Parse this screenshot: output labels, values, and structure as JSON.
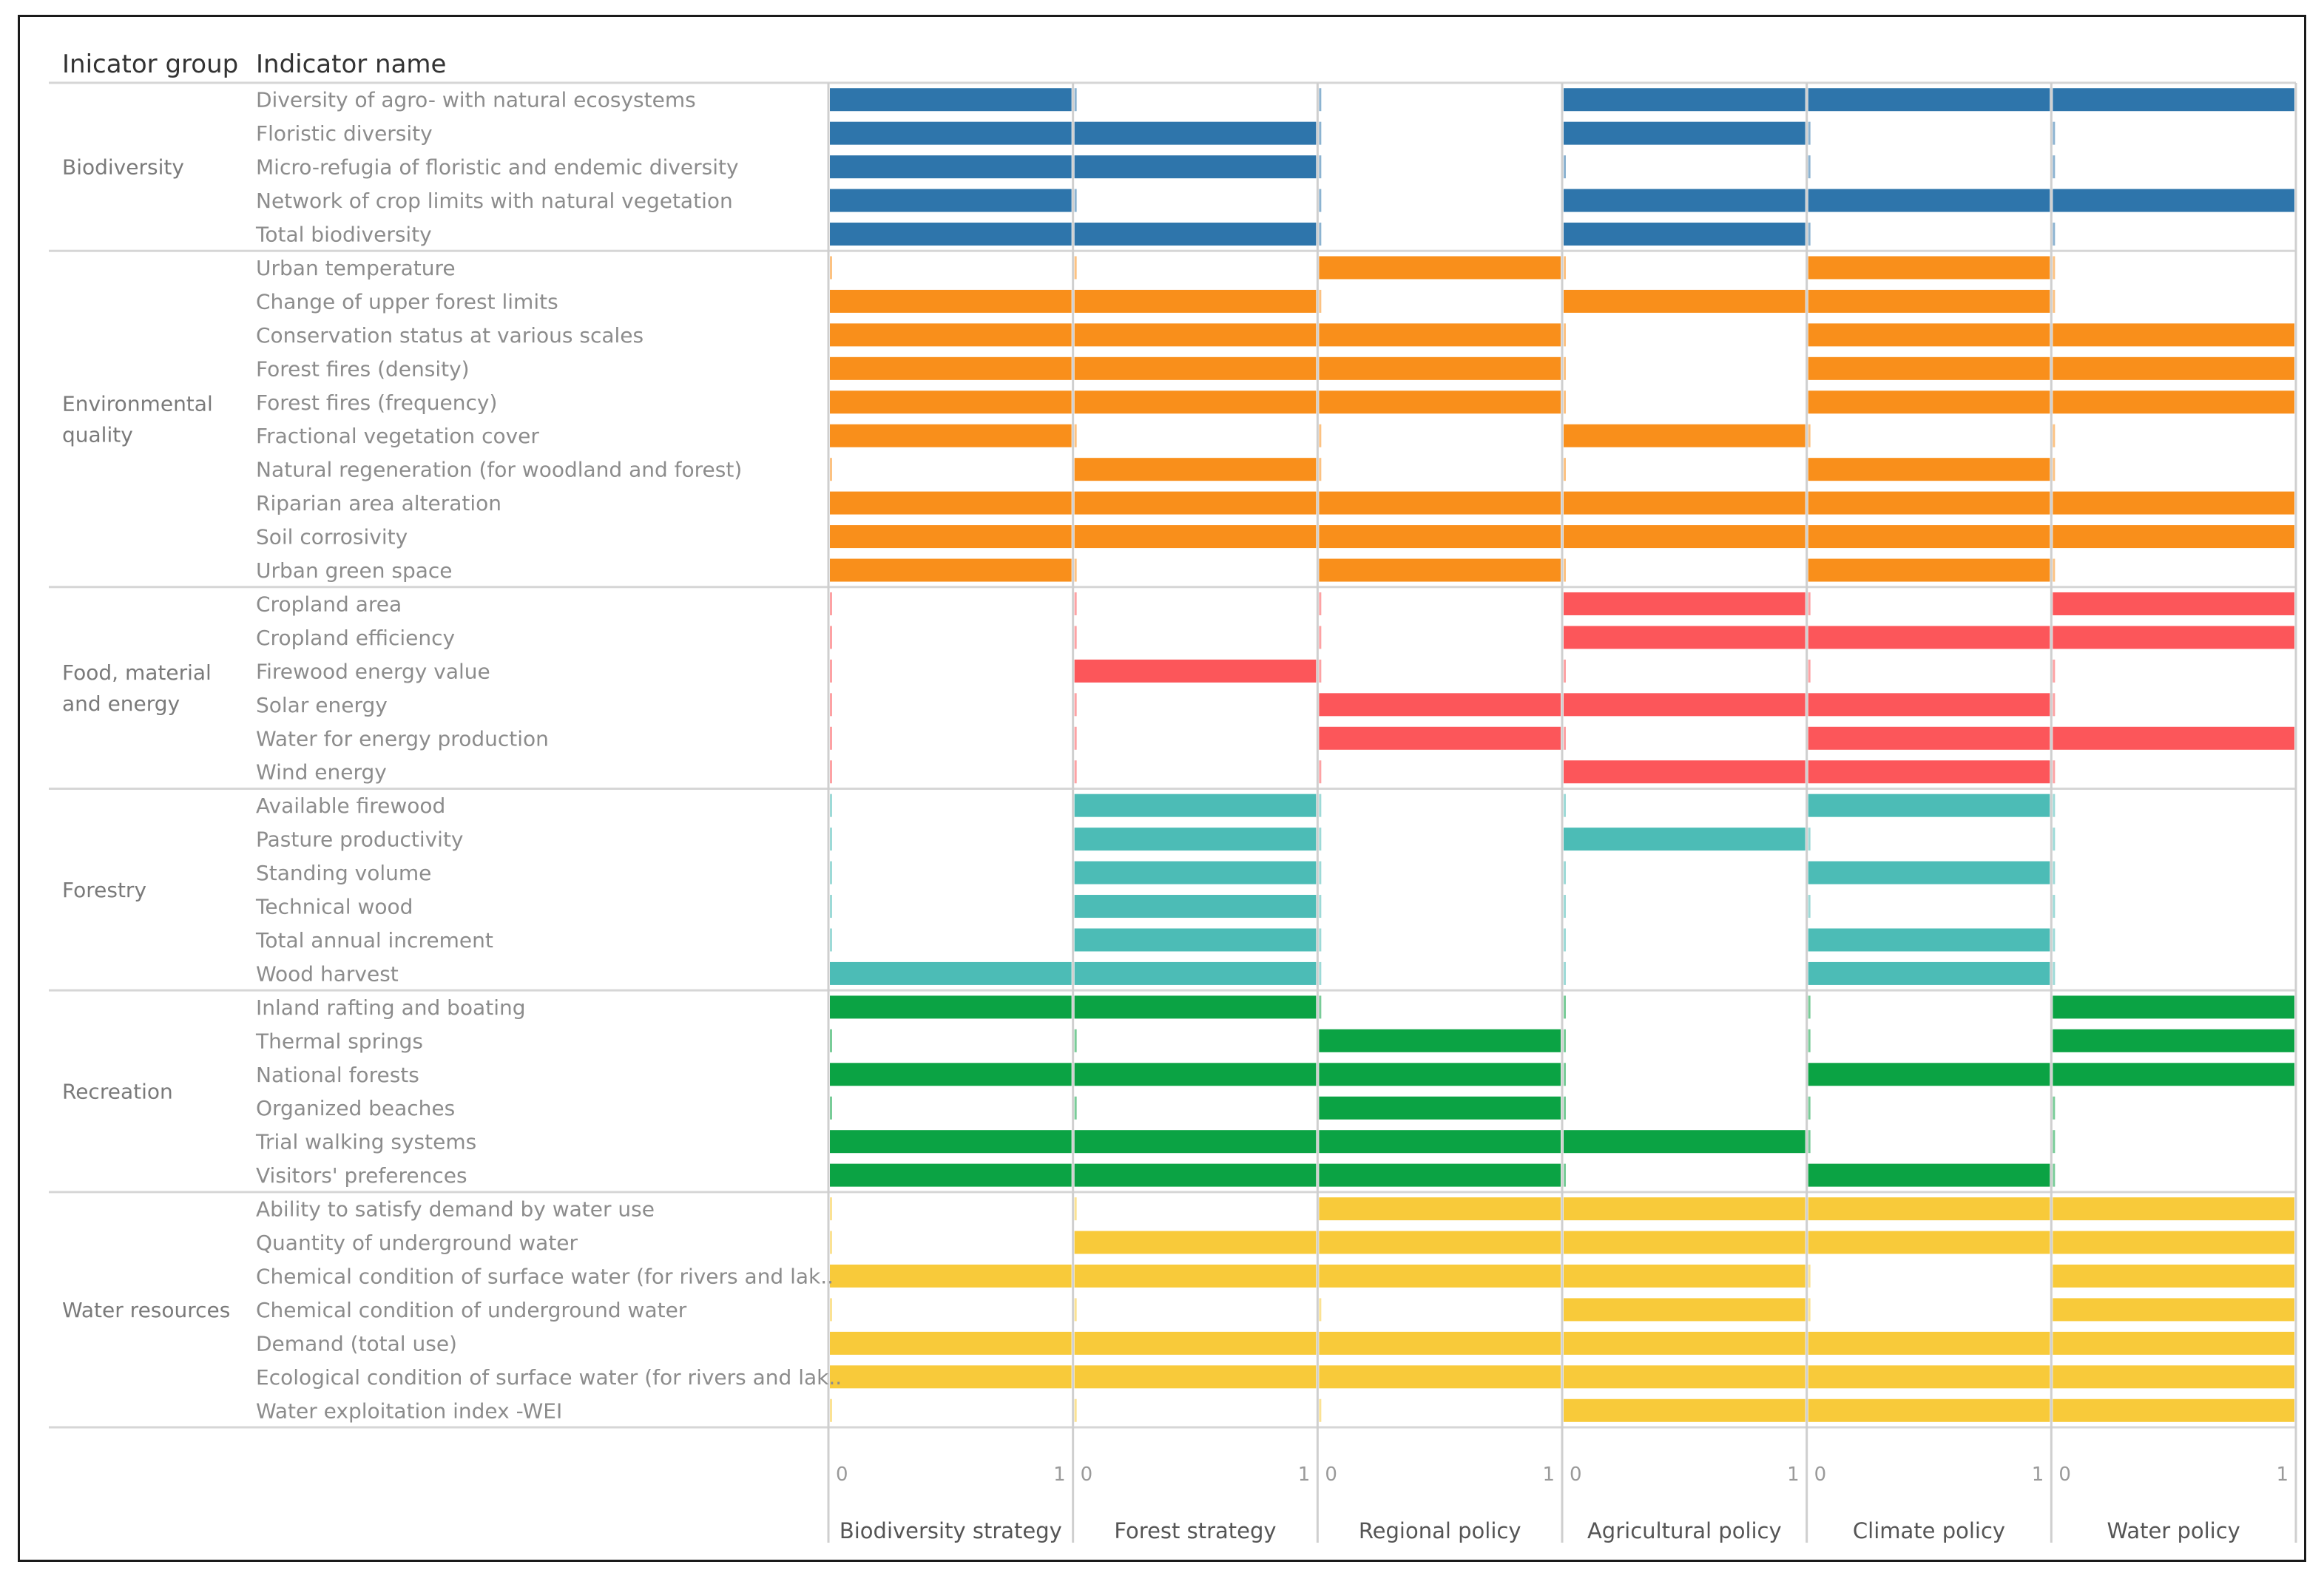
{
  "headers": {
    "group": "Inicator group",
    "indicator": "Indicator name"
  },
  "chart_data": {
    "type": "bar",
    "orientation": "horizontal",
    "xlim": [
      0,
      1
    ],
    "tick_labels": [
      "0",
      "1"
    ],
    "policies": [
      "Biodiversity strategy",
      "Forest strategy",
      "Regional policy",
      "Agricultural policy",
      "Climate policy",
      "Water policy"
    ],
    "groups": [
      {
        "name": [
          "Biodiversity"
        ],
        "color": "#2e75ab",
        "indicators": [
          {
            "name": "Diversity of agro- with natural ecosystems",
            "values": [
              1,
              0,
              0,
              1,
              1,
              1
            ]
          },
          {
            "name": "Floristic diversity",
            "values": [
              1,
              1,
              0,
              1,
              0,
              0
            ]
          },
          {
            "name": "Micro-refugia of floristic and endemic diversity",
            "values": [
              1,
              1,
              0,
              0,
              0,
              0
            ]
          },
          {
            "name": "Network of crop limits with natural vegetation",
            "values": [
              1,
              0,
              0,
              1,
              1,
              1
            ]
          },
          {
            "name": "Total biodiversity",
            "values": [
              1,
              1,
              0,
              1,
              0,
              0
            ]
          }
        ]
      },
      {
        "name": [
          "Environmental",
          "quality"
        ],
        "color": "#f98f1b",
        "indicators": [
          {
            "name": "Urban temperature",
            "values": [
              0,
              0,
              1,
              0,
              1,
              0
            ]
          },
          {
            "name": "Change of upper forest limits",
            "values": [
              1,
              1,
              0,
              1,
              1,
              0
            ]
          },
          {
            "name": "Conservation status at various scales",
            "values": [
              1,
              1,
              1,
              0,
              1,
              1
            ]
          },
          {
            "name": "Forest fires (density)",
            "values": [
              1,
              1,
              1,
              0,
              1,
              1
            ]
          },
          {
            "name": "Forest fires (frequency)",
            "values": [
              1,
              1,
              1,
              0,
              1,
              1
            ]
          },
          {
            "name": "Fractional vegetation cover",
            "values": [
              1,
              0,
              0,
              1,
              0,
              0
            ]
          },
          {
            "name": "Natural regeneration (for woodland and forest)",
            "values": [
              0,
              1,
              0,
              0,
              1,
              0
            ]
          },
          {
            "name": "Riparian area alteration",
            "values": [
              1,
              1,
              1,
              1,
              1,
              1
            ]
          },
          {
            "name": "Soil corrosivity",
            "values": [
              1,
              1,
              1,
              1,
              1,
              1
            ]
          },
          {
            "name": "Urban green space",
            "values": [
              1,
              0,
              1,
              0,
              1,
              0
            ]
          }
        ]
      },
      {
        "name": [
          "Food, material",
          "and energy"
        ],
        "color": "#fc565a",
        "indicators": [
          {
            "name": "Cropland area",
            "values": [
              0,
              0,
              0,
              1,
              0,
              1
            ]
          },
          {
            "name": "Cropland efficiency",
            "values": [
              0,
              0,
              0,
              1,
              1,
              1
            ]
          },
          {
            "name": "Firewood energy value",
            "values": [
              0,
              1,
              0,
              0,
              0,
              0
            ]
          },
          {
            "name": "Solar energy",
            "values": [
              0,
              0,
              1,
              1,
              1,
              0
            ]
          },
          {
            "name": "Water for energy production",
            "values": [
              0,
              0,
              1,
              0,
              1,
              1
            ]
          },
          {
            "name": "Wind energy",
            "values": [
              0,
              0,
              0,
              1,
              1,
              0
            ]
          }
        ]
      },
      {
        "name": [
          "Forestry"
        ],
        "color": "#4cbcb6",
        "indicators": [
          {
            "name": "Available firewood",
            "values": [
              0,
              1,
              0,
              0,
              1,
              0
            ]
          },
          {
            "name": "Pasture productivity",
            "values": [
              0,
              1,
              0,
              1,
              0,
              0
            ]
          },
          {
            "name": "Standing volume",
            "values": [
              0,
              1,
              0,
              0,
              1,
              0
            ]
          },
          {
            "name": "Technical wood",
            "values": [
              0,
              1,
              0,
              0,
              0,
              0
            ]
          },
          {
            "name": "Total annual increment",
            "values": [
              0,
              1,
              0,
              0,
              1,
              0
            ]
          },
          {
            "name": "Wood harvest",
            "values": [
              1,
              1,
              0,
              0,
              1,
              0
            ]
          }
        ]
      },
      {
        "name": [
          "Recreation"
        ],
        "color": "#0ba344",
        "indicators": [
          {
            "name": "Inland rafting and boating",
            "values": [
              1,
              1,
              0,
              0,
              0,
              1
            ]
          },
          {
            "name": "Thermal springs",
            "values": [
              0,
              0,
              1,
              0,
              0,
              1
            ]
          },
          {
            "name": "National forests",
            "values": [
              1,
              1,
              1,
              0,
              1,
              1
            ]
          },
          {
            "name": "Organized beaches",
            "values": [
              0,
              0,
              1,
              0,
              0,
              0
            ]
          },
          {
            "name": "Trial walking systems",
            "values": [
              1,
              1,
              1,
              1,
              0,
              0
            ]
          },
          {
            "name": "Visitors' preferences",
            "values": [
              1,
              1,
              1,
              0,
              1,
              0
            ]
          }
        ]
      },
      {
        "name": [
          "Water resources"
        ],
        "color": "#f8ca3a",
        "indicators": [
          {
            "name": "Ability to satisfy demand by water use",
            "values": [
              0,
              0,
              1,
              1,
              1,
              1
            ]
          },
          {
            "name": "Quantity of underground water",
            "values": [
              0,
              1,
              1,
              1,
              1,
              1
            ]
          },
          {
            "name": "Chemical condition of surface water (for rivers and lak..",
            "values": [
              1,
              1,
              1,
              1,
              0,
              1
            ]
          },
          {
            "name": "Chemical condition of underground water",
            "values": [
              0,
              0,
              0,
              1,
              0,
              1
            ]
          },
          {
            "name": "Demand (total use)",
            "values": [
              1,
              1,
              1,
              1,
              1,
              1
            ]
          },
          {
            "name": "Ecological condition of surface water (for rivers and lak..",
            "values": [
              1,
              1,
              1,
              1,
              1,
              1
            ]
          },
          {
            "name": "Water exploitation index -WEI",
            "values": [
              0,
              0,
              0,
              1,
              1,
              1
            ]
          }
        ]
      }
    ]
  }
}
